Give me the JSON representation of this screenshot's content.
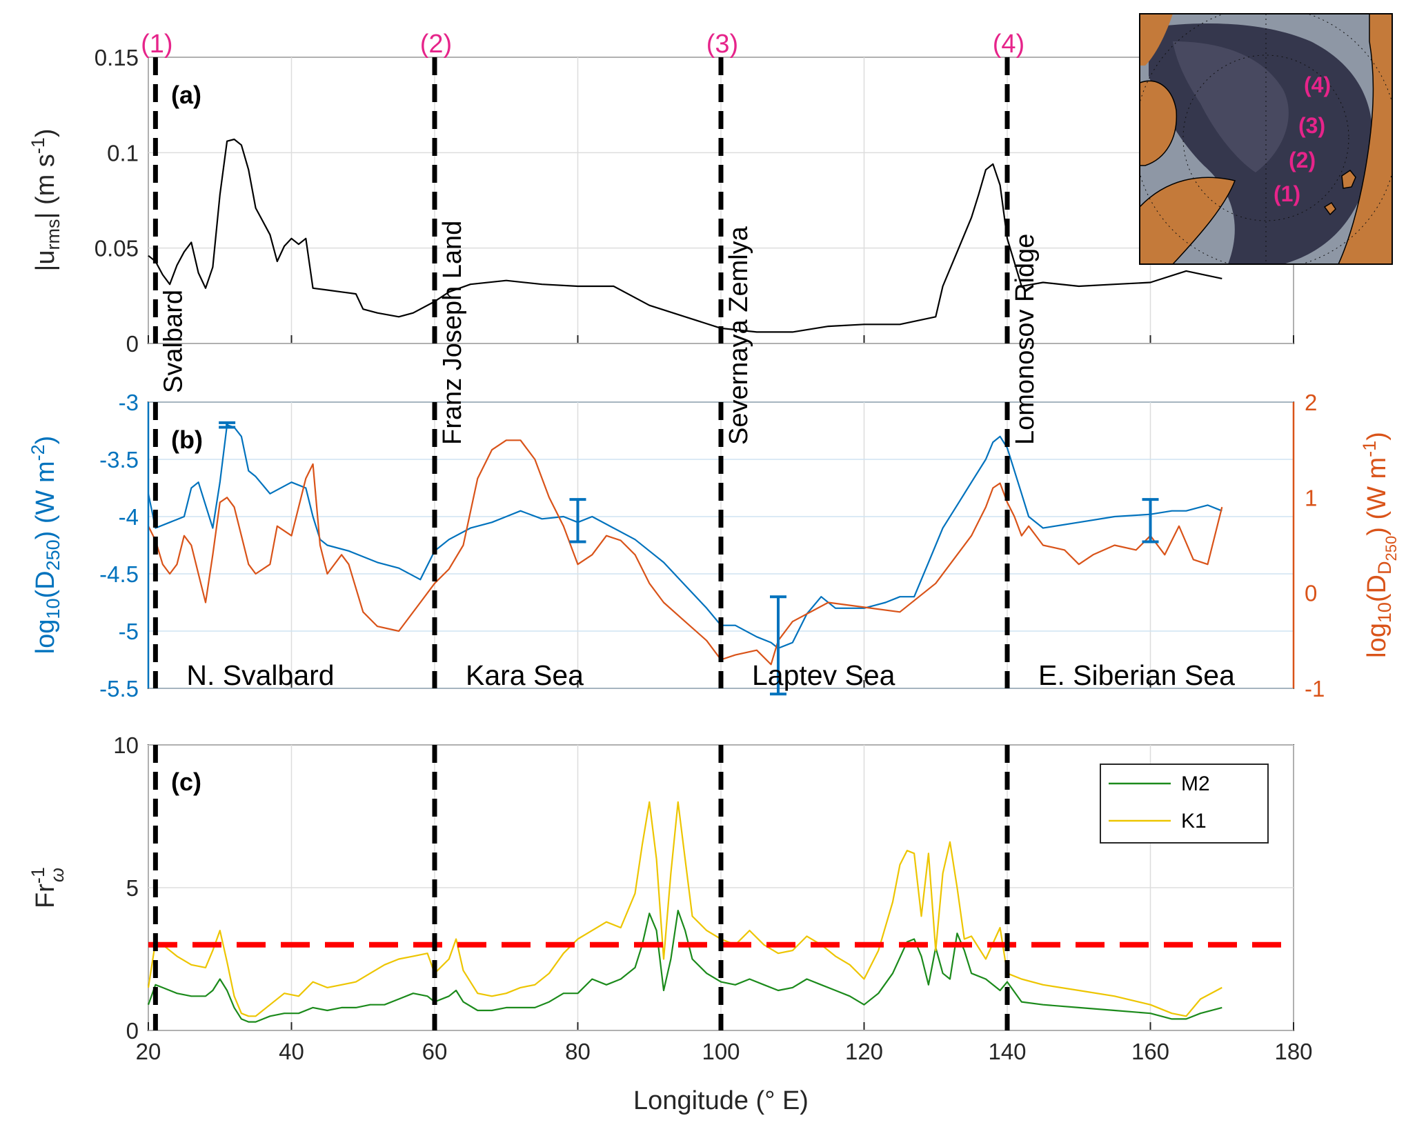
{
  "chart_data": [
    {
      "panel": "a",
      "type": "line",
      "panel_label": "(a)",
      "ylabel": "|u_rms| (m s^-1)",
      "xlim": [
        20,
        180
      ],
      "ylim": [
        0,
        0.15
      ],
      "yticks": [
        0,
        0.05,
        0.1,
        0.15
      ],
      "ytick_labels": [
        "0",
        "0.05",
        "0.1",
        "0.15"
      ],
      "grid": true,
      "series": [
        {
          "color": "#000000",
          "x": [
            20,
            21,
            22,
            23,
            24,
            25,
            26,
            27,
            28,
            29,
            30,
            31,
            32,
            33,
            34,
            35,
            36,
            37,
            38,
            39,
            40,
            41,
            42,
            43,
            45,
            47,
            49,
            50,
            52,
            55,
            57,
            60,
            62,
            65,
            70,
            75,
            80,
            85,
            90,
            95,
            100,
            105,
            110,
            115,
            120,
            125,
            130,
            131,
            133,
            135,
            136,
            137,
            138,
            139,
            140,
            142,
            145,
            150,
            155,
            160,
            165,
            170
          ],
          "y": [
            0.046,
            0.043,
            0.036,
            0.031,
            0.041,
            0.048,
            0.053,
            0.037,
            0.029,
            0.04,
            0.078,
            0.106,
            0.107,
            0.104,
            0.091,
            0.071,
            0.064,
            0.057,
            0.043,
            0.051,
            0.055,
            0.052,
            0.055,
            0.029,
            0.028,
            0.027,
            0.026,
            0.018,
            0.016,
            0.014,
            0.016,
            0.022,
            0.027,
            0.031,
            0.033,
            0.031,
            0.03,
            0.03,
            0.02,
            0.014,
            0.008,
            0.006,
            0.006,
            0.009,
            0.01,
            0.01,
            0.014,
            0.03,
            0.048,
            0.066,
            0.078,
            0.091,
            0.094,
            0.083,
            0.055,
            0.03,
            0.032,
            0.03,
            0.031,
            0.032,
            0.038,
            0.034
          ]
        }
      ]
    },
    {
      "panel": "b",
      "type": "line",
      "panel_label": "(b)",
      "ylabel": "log10(D250) (W m^-2)",
      "ylabel_right": "log10(D_D250) (W m^-1)",
      "xlim": [
        20,
        180
      ],
      "ylim": [
        -5.5,
        -3
      ],
      "ylim_right": [
        -1,
        2
      ],
      "yticks": [
        -5.5,
        -5,
        -4.5,
        -4,
        -3.5,
        -3
      ],
      "ytick_labels": [
        "-5.5",
        "-5",
        "-4.5",
        "-4",
        "-3.5",
        "-3"
      ],
      "yticks_right": [
        -1,
        0,
        1,
        2
      ],
      "ytick_labels_right": [
        "-1",
        "0",
        "1",
        "2"
      ],
      "grid": true,
      "series": [
        {
          "color": "#0072BD",
          "axis": "left",
          "x": [
            20,
            21,
            23,
            25,
            26,
            27,
            28,
            29,
            30,
            31,
            32,
            33,
            34,
            35,
            37,
            40,
            42,
            43,
            44,
            45,
            48,
            50,
            52,
            55,
            58,
            60,
            62,
            65,
            68,
            70,
            72,
            75,
            78,
            80,
            82,
            85,
            88,
            90,
            92,
            95,
            98,
            100,
            102,
            105,
            107,
            108,
            110,
            112,
            114,
            116,
            120,
            123,
            125,
            127,
            129,
            131,
            133,
            135,
            137,
            138,
            139,
            140,
            141,
            142,
            143,
            145,
            150,
            155,
            160,
            163,
            165,
            168,
            170
          ],
          "y": [
            -3.8,
            -4.1,
            -4.05,
            -4.0,
            -3.75,
            -3.7,
            -3.9,
            -4.1,
            -3.7,
            -3.2,
            -3.22,
            -3.3,
            -3.6,
            -3.65,
            -3.8,
            -3.7,
            -3.75,
            -4.0,
            -4.2,
            -4.25,
            -4.3,
            -4.35,
            -4.4,
            -4.45,
            -4.55,
            -4.3,
            -4.2,
            -4.1,
            -4.05,
            -4.0,
            -3.95,
            -4.02,
            -4.0,
            -4.05,
            -4.0,
            -4.1,
            -4.2,
            -4.3,
            -4.4,
            -4.6,
            -4.8,
            -4.95,
            -4.95,
            -5.05,
            -5.1,
            -5.15,
            -5.1,
            -4.85,
            -4.7,
            -4.8,
            -4.8,
            -4.75,
            -4.7,
            -4.7,
            -4.4,
            -4.1,
            -3.9,
            -3.7,
            -3.5,
            -3.35,
            -3.3,
            -3.4,
            -3.6,
            -3.8,
            -4.0,
            -4.1,
            -4.05,
            -4.0,
            -3.98,
            -3.95,
            -3.95,
            -3.9,
            -3.95
          ]
        },
        {
          "color": "#D95319",
          "axis": "right",
          "x": [
            20,
            21,
            22,
            23,
            24,
            25,
            26,
            27,
            28,
            29,
            30,
            31,
            32,
            33,
            34,
            35,
            37,
            38,
            40,
            42,
            43,
            44,
            45,
            47,
            48,
            50,
            52,
            55,
            58,
            60,
            62,
            64,
            66,
            68,
            70,
            72,
            74,
            76,
            78,
            80,
            82,
            84,
            86,
            88,
            90,
            92,
            95,
            98,
            100,
            102,
            105,
            107,
            108,
            110,
            115,
            120,
            125,
            130,
            133,
            135,
            137,
            138,
            139,
            140,
            141,
            142,
            143,
            145,
            148,
            150,
            152,
            155,
            158,
            160,
            162,
            164,
            166,
            168,
            170
          ],
          "y": [
            0.7,
            0.55,
            0.3,
            0.2,
            0.3,
            0.6,
            0.5,
            0.2,
            -0.1,
            0.4,
            0.95,
            1.0,
            0.9,
            0.6,
            0.3,
            0.2,
            0.3,
            0.7,
            0.6,
            1.2,
            1.35,
            0.5,
            0.2,
            0.4,
            0.3,
            -0.2,
            -0.35,
            -0.4,
            -0.1,
            0.1,
            0.25,
            0.5,
            1.2,
            1.5,
            1.6,
            1.6,
            1.4,
            1.0,
            0.7,
            0.3,
            0.4,
            0.6,
            0.55,
            0.4,
            0.1,
            -0.1,
            -0.3,
            -0.5,
            -0.7,
            -0.65,
            -0.6,
            -0.75,
            -0.5,
            -0.3,
            -0.1,
            -0.15,
            -0.2,
            0.1,
            0.4,
            0.6,
            0.9,
            1.1,
            1.15,
            0.95,
            0.8,
            0.6,
            0.7,
            0.5,
            0.45,
            0.3,
            0.4,
            0.5,
            0.45,
            0.6,
            0.4,
            0.7,
            0.35,
            0.3,
            0.9
          ]
        }
      ],
      "error_bars": [
        {
          "x": 31,
          "low": -3.22,
          "high": -3.18
        },
        {
          "x": 80,
          "low": -4.22,
          "high": -3.85
        },
        {
          "x": 108,
          "low": -5.55,
          "high": -4.7
        },
        {
          "x": 160,
          "low": -4.22,
          "high": -3.85
        }
      ]
    },
    {
      "panel": "c",
      "type": "line",
      "panel_label": "(c)",
      "xlabel": "Longitude (° E)",
      "ylabel": "Fr_ω^-1",
      "xlim": [
        20,
        180
      ],
      "ylim": [
        0,
        10
      ],
      "xticks": [
        20,
        40,
        60,
        80,
        100,
        120,
        140,
        160,
        180
      ],
      "xtick_labels": [
        "20",
        "40",
        "60",
        "80",
        "100",
        "120",
        "140",
        "160",
        "180"
      ],
      "yticks": [
        0,
        5,
        10
      ],
      "ytick_labels": [
        "0",
        "5",
        "10"
      ],
      "grid": true,
      "reference_line": {
        "y": 3,
        "color": "#FF0000",
        "style": "dashed"
      },
      "legend": {
        "placement": "top-right",
        "entries": [
          "M2",
          "K1"
        ]
      },
      "series": [
        {
          "name": "M2",
          "color": "#1B8A1B",
          "x": [
            20,
            21,
            22,
            24,
            26,
            28,
            29,
            30,
            31,
            32,
            33,
            34,
            35,
            37,
            39,
            41,
            43,
            45,
            47,
            49,
            51,
            53,
            55,
            57,
            59,
            60,
            62,
            63,
            64,
            66,
            68,
            70,
            72,
            74,
            76,
            78,
            80,
            82,
            84,
            86,
            88,
            89,
            90,
            91,
            92,
            93,
            94,
            95,
            96,
            98,
            100,
            102,
            104,
            106,
            108,
            110,
            112,
            114,
            116,
            118,
            120,
            122,
            124,
            126,
            127,
            128,
            129,
            130,
            131,
            132,
            133,
            134,
            135,
            137,
            139,
            140,
            142,
            145,
            150,
            155,
            160,
            163,
            165,
            167,
            170
          ],
          "y": [
            0.9,
            1.6,
            1.5,
            1.3,
            1.2,
            1.2,
            1.4,
            1.8,
            1.4,
            0.8,
            0.4,
            0.3,
            0.3,
            0.5,
            0.6,
            0.6,
            0.8,
            0.7,
            0.8,
            0.8,
            0.9,
            0.9,
            1.1,
            1.3,
            1.2,
            1.0,
            1.2,
            1.4,
            1.0,
            0.7,
            0.7,
            0.8,
            0.8,
            0.8,
            1.0,
            1.3,
            1.3,
            1.8,
            1.6,
            1.8,
            2.2,
            3.0,
            4.1,
            3.5,
            1.4,
            2.5,
            4.2,
            3.5,
            2.5,
            2.0,
            1.7,
            1.6,
            1.8,
            1.6,
            1.4,
            1.5,
            1.8,
            1.6,
            1.4,
            1.2,
            0.9,
            1.3,
            2.0,
            3.1,
            3.2,
            2.6,
            1.6,
            2.9,
            2.0,
            1.8,
            3.4,
            2.8,
            2.0,
            1.8,
            1.4,
            1.7,
            1.0,
            0.9,
            0.8,
            0.7,
            0.6,
            0.4,
            0.4,
            0.6,
            0.8
          ]
        },
        {
          "name": "K1",
          "color": "#EDC500",
          "x": [
            20,
            21,
            22,
            24,
            26,
            28,
            29,
            30,
            31,
            32,
            33,
            34,
            35,
            37,
            39,
            41,
            43,
            45,
            47,
            49,
            51,
            53,
            55,
            57,
            59,
            60,
            62,
            63,
            64,
            66,
            68,
            70,
            72,
            74,
            76,
            78,
            80,
            82,
            84,
            86,
            88,
            89,
            90,
            91,
            92,
            93,
            94,
            95,
            96,
            98,
            100,
            102,
            104,
            106,
            108,
            110,
            112,
            114,
            116,
            118,
            120,
            122,
            124,
            125,
            126,
            127,
            128,
            129,
            130,
            131,
            132,
            133,
            134,
            135,
            137,
            139,
            140,
            142,
            145,
            150,
            155,
            160,
            163,
            165,
            167,
            170
          ],
          "y": [
            1.5,
            3.1,
            3.0,
            2.6,
            2.3,
            2.2,
            2.8,
            3.5,
            2.4,
            1.2,
            0.6,
            0.5,
            0.5,
            0.9,
            1.3,
            1.2,
            1.7,
            1.5,
            1.6,
            1.7,
            2.0,
            2.3,
            2.5,
            2.6,
            2.7,
            2.0,
            2.5,
            3.2,
            2.1,
            1.3,
            1.2,
            1.3,
            1.5,
            1.6,
            2.0,
            2.7,
            3.2,
            3.5,
            3.8,
            3.6,
            4.8,
            6.5,
            8.0,
            6.0,
            2.5,
            5.5,
            8.0,
            6.0,
            4.0,
            3.5,
            3.2,
            3.0,
            3.5,
            3.0,
            2.7,
            2.8,
            3.3,
            3.0,
            2.6,
            2.3,
            1.8,
            2.8,
            4.5,
            5.8,
            6.3,
            6.2,
            4.0,
            6.2,
            2.8,
            5.5,
            6.6,
            5.0,
            3.2,
            3.3,
            2.5,
            3.6,
            2.0,
            1.8,
            1.6,
            1.4,
            1.2,
            0.9,
            0.6,
            0.5,
            1.1,
            1.5
          ]
        }
      ]
    }
  ],
  "section_lines": {
    "longitudes": [
      21,
      60,
      100,
      140
    ],
    "top_labels": [
      "(1)",
      "(2)",
      "(3)",
      "(4)"
    ],
    "vertical_labels": [
      "Svalbard",
      "Franz Joseph Land",
      "Severnaya Zemlya",
      "Lomonosov Ridge"
    ]
  },
  "regions": [
    {
      "label": "N. Svalbard"
    },
    {
      "label": "Kara Sea"
    },
    {
      "label": "Laptev Sea"
    },
    {
      "label": "E. Siberian Sea"
    }
  ],
  "inset_map": {
    "labels": [
      "(4)",
      "(3)",
      "(2)",
      "(1)"
    ],
    "colors": {
      "land": "#C47A3A",
      "deep_ocean": "#2E2F45",
      "shelf": "#8E97A5",
      "labels": "#E6248A"
    }
  }
}
